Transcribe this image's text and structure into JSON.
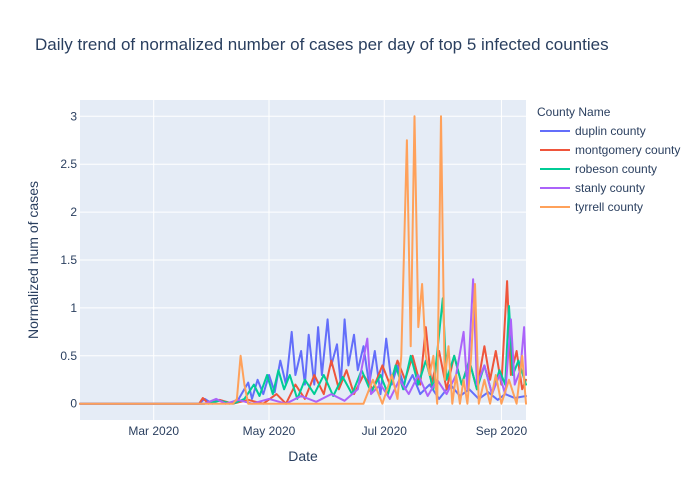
{
  "chart_data": {
    "type": "line",
    "title": "Daily trend of normalized number of cases per day of top 5 infected counties",
    "xlabel": "Date",
    "ylabel": "Normalized num of cases",
    "legend_title": "County Name",
    "legend_position": "right",
    "grid": true,
    "xlim": [
      "2020-01-22",
      "2020-09-14"
    ],
    "ylim": [
      -0.17,
      3.17
    ],
    "x_ticks": [
      {
        "value": "2020-03-01",
        "label": "Mar 2020"
      },
      {
        "value": "2020-05-01",
        "label": "May 2020"
      },
      {
        "value": "2020-07-01",
        "label": "Jul 2020"
      },
      {
        "value": "2020-09-01",
        "label": "Sep 2020"
      }
    ],
    "y_ticks": [
      {
        "value": 0,
        "label": "0"
      },
      {
        "value": 0.5,
        "label": "0.5"
      },
      {
        "value": 1,
        "label": "1"
      },
      {
        "value": 1.5,
        "label": "1.5"
      },
      {
        "value": 2,
        "label": "2"
      },
      {
        "value": 2.5,
        "label": "2.5"
      },
      {
        "value": 3,
        "label": "3"
      }
    ],
    "series": [
      {
        "name": "duplin county",
        "color": "#636efa",
        "points": [
          [
            "2020-01-22",
            0
          ],
          [
            "2020-03-25",
            0
          ],
          [
            "2020-03-28",
            0.05
          ],
          [
            "2020-04-01",
            0
          ],
          [
            "2020-04-05",
            0.04
          ],
          [
            "2020-04-10",
            0
          ],
          [
            "2020-04-15",
            0.05
          ],
          [
            "2020-04-20",
            0.22
          ],
          [
            "2020-04-22",
            0.05
          ],
          [
            "2020-04-25",
            0.25
          ],
          [
            "2020-04-28",
            0.1
          ],
          [
            "2020-05-01",
            0.3
          ],
          [
            "2020-05-04",
            0.12
          ],
          [
            "2020-05-07",
            0.45
          ],
          [
            "2020-05-10",
            0.2
          ],
          [
            "2020-05-13",
            0.75
          ],
          [
            "2020-05-15",
            0.3
          ],
          [
            "2020-05-18",
            0.55
          ],
          [
            "2020-05-20",
            0.2
          ],
          [
            "2020-05-22",
            0.72
          ],
          [
            "2020-05-25",
            0.2
          ],
          [
            "2020-05-27",
            0.8
          ],
          [
            "2020-05-29",
            0.3
          ],
          [
            "2020-06-01",
            0.88
          ],
          [
            "2020-06-03",
            0.4
          ],
          [
            "2020-06-06",
            0.62
          ],
          [
            "2020-06-08",
            0.2
          ],
          [
            "2020-06-10",
            0.88
          ],
          [
            "2020-06-12",
            0.4
          ],
          [
            "2020-06-15",
            0.72
          ],
          [
            "2020-06-17",
            0.35
          ],
          [
            "2020-06-20",
            0.6
          ],
          [
            "2020-06-23",
            0.2
          ],
          [
            "2020-06-26",
            0.55
          ],
          [
            "2020-06-29",
            0.1
          ],
          [
            "2020-07-02",
            0.68
          ],
          [
            "2020-07-05",
            0.2
          ],
          [
            "2020-07-08",
            0.4
          ],
          [
            "2020-07-12",
            0.15
          ],
          [
            "2020-07-16",
            0.3
          ],
          [
            "2020-07-20",
            0.1
          ],
          [
            "2020-07-25",
            0.2
          ],
          [
            "2020-07-30",
            0.05
          ],
          [
            "2020-08-05",
            0.2
          ],
          [
            "2020-08-10",
            0.08
          ],
          [
            "2020-08-15",
            0.15
          ],
          [
            "2020-08-20",
            0.05
          ],
          [
            "2020-08-25",
            0.12
          ],
          [
            "2020-08-30",
            0.04
          ],
          [
            "2020-09-03",
            0.1
          ],
          [
            "2020-09-08",
            0.06
          ],
          [
            "2020-09-14",
            0.08
          ]
        ]
      },
      {
        "name": "montgomery county",
        "color": "#ef553b",
        "points": [
          [
            "2020-01-22",
            0
          ],
          [
            "2020-03-25",
            0
          ],
          [
            "2020-03-27",
            0.06
          ],
          [
            "2020-03-30",
            0
          ],
          [
            "2020-04-05",
            0.04
          ],
          [
            "2020-04-12",
            0
          ],
          [
            "2020-04-20",
            0.04
          ],
          [
            "2020-04-28",
            0
          ],
          [
            "2020-05-05",
            0.1
          ],
          [
            "2020-05-10",
            0
          ],
          [
            "2020-05-15",
            0.2
          ],
          [
            "2020-05-20",
            0.05
          ],
          [
            "2020-05-25",
            0.3
          ],
          [
            "2020-05-30",
            0.1
          ],
          [
            "2020-06-03",
            0.45
          ],
          [
            "2020-06-07",
            0.15
          ],
          [
            "2020-06-11",
            0.35
          ],
          [
            "2020-06-15",
            0.1
          ],
          [
            "2020-06-20",
            0.3
          ],
          [
            "2020-06-25",
            0.15
          ],
          [
            "2020-06-30",
            0.4
          ],
          [
            "2020-07-04",
            0.2
          ],
          [
            "2020-07-08",
            0.45
          ],
          [
            "2020-07-12",
            0.25
          ],
          [
            "2020-07-16",
            0.5
          ],
          [
            "2020-07-20",
            0.2
          ],
          [
            "2020-07-23",
            0.8
          ],
          [
            "2020-07-26",
            0.2
          ],
          [
            "2020-07-30",
            0.55
          ],
          [
            "2020-08-03",
            0.15
          ],
          [
            "2020-08-07",
            0.5
          ],
          [
            "2020-08-11",
            0.2
          ],
          [
            "2020-08-15",
            0.45
          ],
          [
            "2020-08-19",
            0.15
          ],
          [
            "2020-08-23",
            0.6
          ],
          [
            "2020-08-26",
            0.25
          ],
          [
            "2020-08-29",
            0.55
          ],
          [
            "2020-09-01",
            0.2
          ],
          [
            "2020-09-04",
            1.28
          ],
          [
            "2020-09-06",
            0.3
          ],
          [
            "2020-09-09",
            0.55
          ],
          [
            "2020-09-12",
            0.15
          ],
          [
            "2020-09-14",
            0.25
          ]
        ]
      },
      {
        "name": "robeson county",
        "color": "#00cc96",
        "points": [
          [
            "2020-01-22",
            0
          ],
          [
            "2020-03-28",
            0
          ],
          [
            "2020-04-05",
            0.03
          ],
          [
            "2020-04-12",
            0
          ],
          [
            "2020-04-18",
            0.05
          ],
          [
            "2020-04-23",
            0.2
          ],
          [
            "2020-04-26",
            0.08
          ],
          [
            "2020-04-30",
            0.3
          ],
          [
            "2020-05-03",
            0.1
          ],
          [
            "2020-05-06",
            0.35
          ],
          [
            "2020-05-09",
            0.15
          ],
          [
            "2020-05-12",
            0.3
          ],
          [
            "2020-05-16",
            0.05
          ],
          [
            "2020-05-20",
            0.25
          ],
          [
            "2020-05-25",
            0.1
          ],
          [
            "2020-05-30",
            0.3
          ],
          [
            "2020-06-04",
            0.08
          ],
          [
            "2020-06-09",
            0.28
          ],
          [
            "2020-06-14",
            0.1
          ],
          [
            "2020-06-19",
            0.35
          ],
          [
            "2020-06-24",
            0.12
          ],
          [
            "2020-06-29",
            0.3
          ],
          [
            "2020-07-03",
            0.1
          ],
          [
            "2020-07-07",
            0.4
          ],
          [
            "2020-07-11",
            0.15
          ],
          [
            "2020-07-15",
            0.5
          ],
          [
            "2020-07-19",
            0.2
          ],
          [
            "2020-07-23",
            0.45
          ],
          [
            "2020-07-27",
            0.15
          ],
          [
            "2020-08-01",
            1.1
          ],
          [
            "2020-08-03",
            0.25
          ],
          [
            "2020-08-07",
            0.5
          ],
          [
            "2020-08-11",
            0.2
          ],
          [
            "2020-08-15",
            0.45
          ],
          [
            "2020-08-19",
            0.15
          ],
          [
            "2020-08-23",
            0.4
          ],
          [
            "2020-08-27",
            0.1
          ],
          [
            "2020-08-31",
            0.35
          ],
          [
            "2020-09-03",
            0.2
          ],
          [
            "2020-09-05",
            1.02
          ],
          [
            "2020-09-07",
            0.3
          ],
          [
            "2020-09-10",
            0.45
          ],
          [
            "2020-09-14",
            0.2
          ]
        ]
      },
      {
        "name": "stanly county",
        "color": "#ab63fa",
        "points": [
          [
            "2020-01-22",
            0
          ],
          [
            "2020-03-28",
            0
          ],
          [
            "2020-04-03",
            0.05
          ],
          [
            "2020-04-08",
            0
          ],
          [
            "2020-04-15",
            0.04
          ],
          [
            "2020-04-22",
            0
          ],
          [
            "2020-05-01",
            0.05
          ],
          [
            "2020-05-10",
            0
          ],
          [
            "2020-05-18",
            0.08
          ],
          [
            "2020-05-26",
            0.02
          ],
          [
            "2020-06-03",
            0.1
          ],
          [
            "2020-06-10",
            0.03
          ],
          [
            "2020-06-17",
            0.15
          ],
          [
            "2020-06-22",
            0.68
          ],
          [
            "2020-06-24",
            0.1
          ],
          [
            "2020-06-29",
            0.2
          ],
          [
            "2020-07-04",
            0.05
          ],
          [
            "2020-07-09",
            0.25
          ],
          [
            "2020-07-14",
            0.1
          ],
          [
            "2020-07-19",
            0.3
          ],
          [
            "2020-07-24",
            0.08
          ],
          [
            "2020-07-29",
            0.25
          ],
          [
            "2020-08-03",
            0.1
          ],
          [
            "2020-08-08",
            0.3
          ],
          [
            "2020-08-12",
            0.75
          ],
          [
            "2020-08-14",
            0.15
          ],
          [
            "2020-08-17",
            1.3
          ],
          [
            "2020-08-19",
            0.2
          ],
          [
            "2020-08-23",
            0.4
          ],
          [
            "2020-08-27",
            0.1
          ],
          [
            "2020-08-31",
            0.3
          ],
          [
            "2020-09-03",
            0.1
          ],
          [
            "2020-09-06",
            0.88
          ],
          [
            "2020-09-08",
            0.2
          ],
          [
            "2020-09-11",
            0.35
          ],
          [
            "2020-09-13",
            0.8
          ],
          [
            "2020-09-14",
            0.3
          ]
        ]
      },
      {
        "name": "tyrrell county",
        "color": "#ffa15a",
        "points": [
          [
            "2020-01-22",
            0
          ],
          [
            "2020-04-12",
            0
          ],
          [
            "2020-04-14",
            0.05
          ],
          [
            "2020-04-16",
            0.5
          ],
          [
            "2020-04-18",
            0.2
          ],
          [
            "2020-04-20",
            0
          ],
          [
            "2020-06-20",
            0
          ],
          [
            "2020-06-25",
            0.25
          ],
          [
            "2020-06-30",
            0
          ],
          [
            "2020-07-05",
            0.3
          ],
          [
            "2020-07-08",
            0.05
          ],
          [
            "2020-07-10",
            0.5
          ],
          [
            "2020-07-13",
            2.75
          ],
          [
            "2020-07-15",
            0.6
          ],
          [
            "2020-07-17",
            3.0
          ],
          [
            "2020-07-19",
            0.8
          ],
          [
            "2020-07-21",
            1.25
          ],
          [
            "2020-07-23",
            0.5
          ],
          [
            "2020-07-25",
            0.3
          ],
          [
            "2020-07-27",
            0.5
          ],
          [
            "2020-07-29",
            0.0
          ],
          [
            "2020-07-31",
            3.0
          ],
          [
            "2020-08-02",
            0.25
          ],
          [
            "2020-08-04",
            0.6
          ],
          [
            "2020-08-06",
            0.0
          ],
          [
            "2020-08-08",
            0.3
          ],
          [
            "2020-08-10",
            0.0
          ],
          [
            "2020-08-12",
            0.25
          ],
          [
            "2020-08-14",
            0.0
          ],
          [
            "2020-08-16",
            0.5
          ],
          [
            "2020-08-18",
            1.25
          ],
          [
            "2020-08-20",
            0.0
          ],
          [
            "2020-08-23",
            0.25
          ],
          [
            "2020-08-26",
            0.0
          ],
          [
            "2020-08-29",
            0.3
          ],
          [
            "2020-09-01",
            0.0
          ],
          [
            "2020-09-05",
            0.25
          ],
          [
            "2020-09-09",
            0.0
          ],
          [
            "2020-09-12",
            0.5
          ],
          [
            "2020-09-14",
            0.0
          ]
        ]
      }
    ]
  }
}
